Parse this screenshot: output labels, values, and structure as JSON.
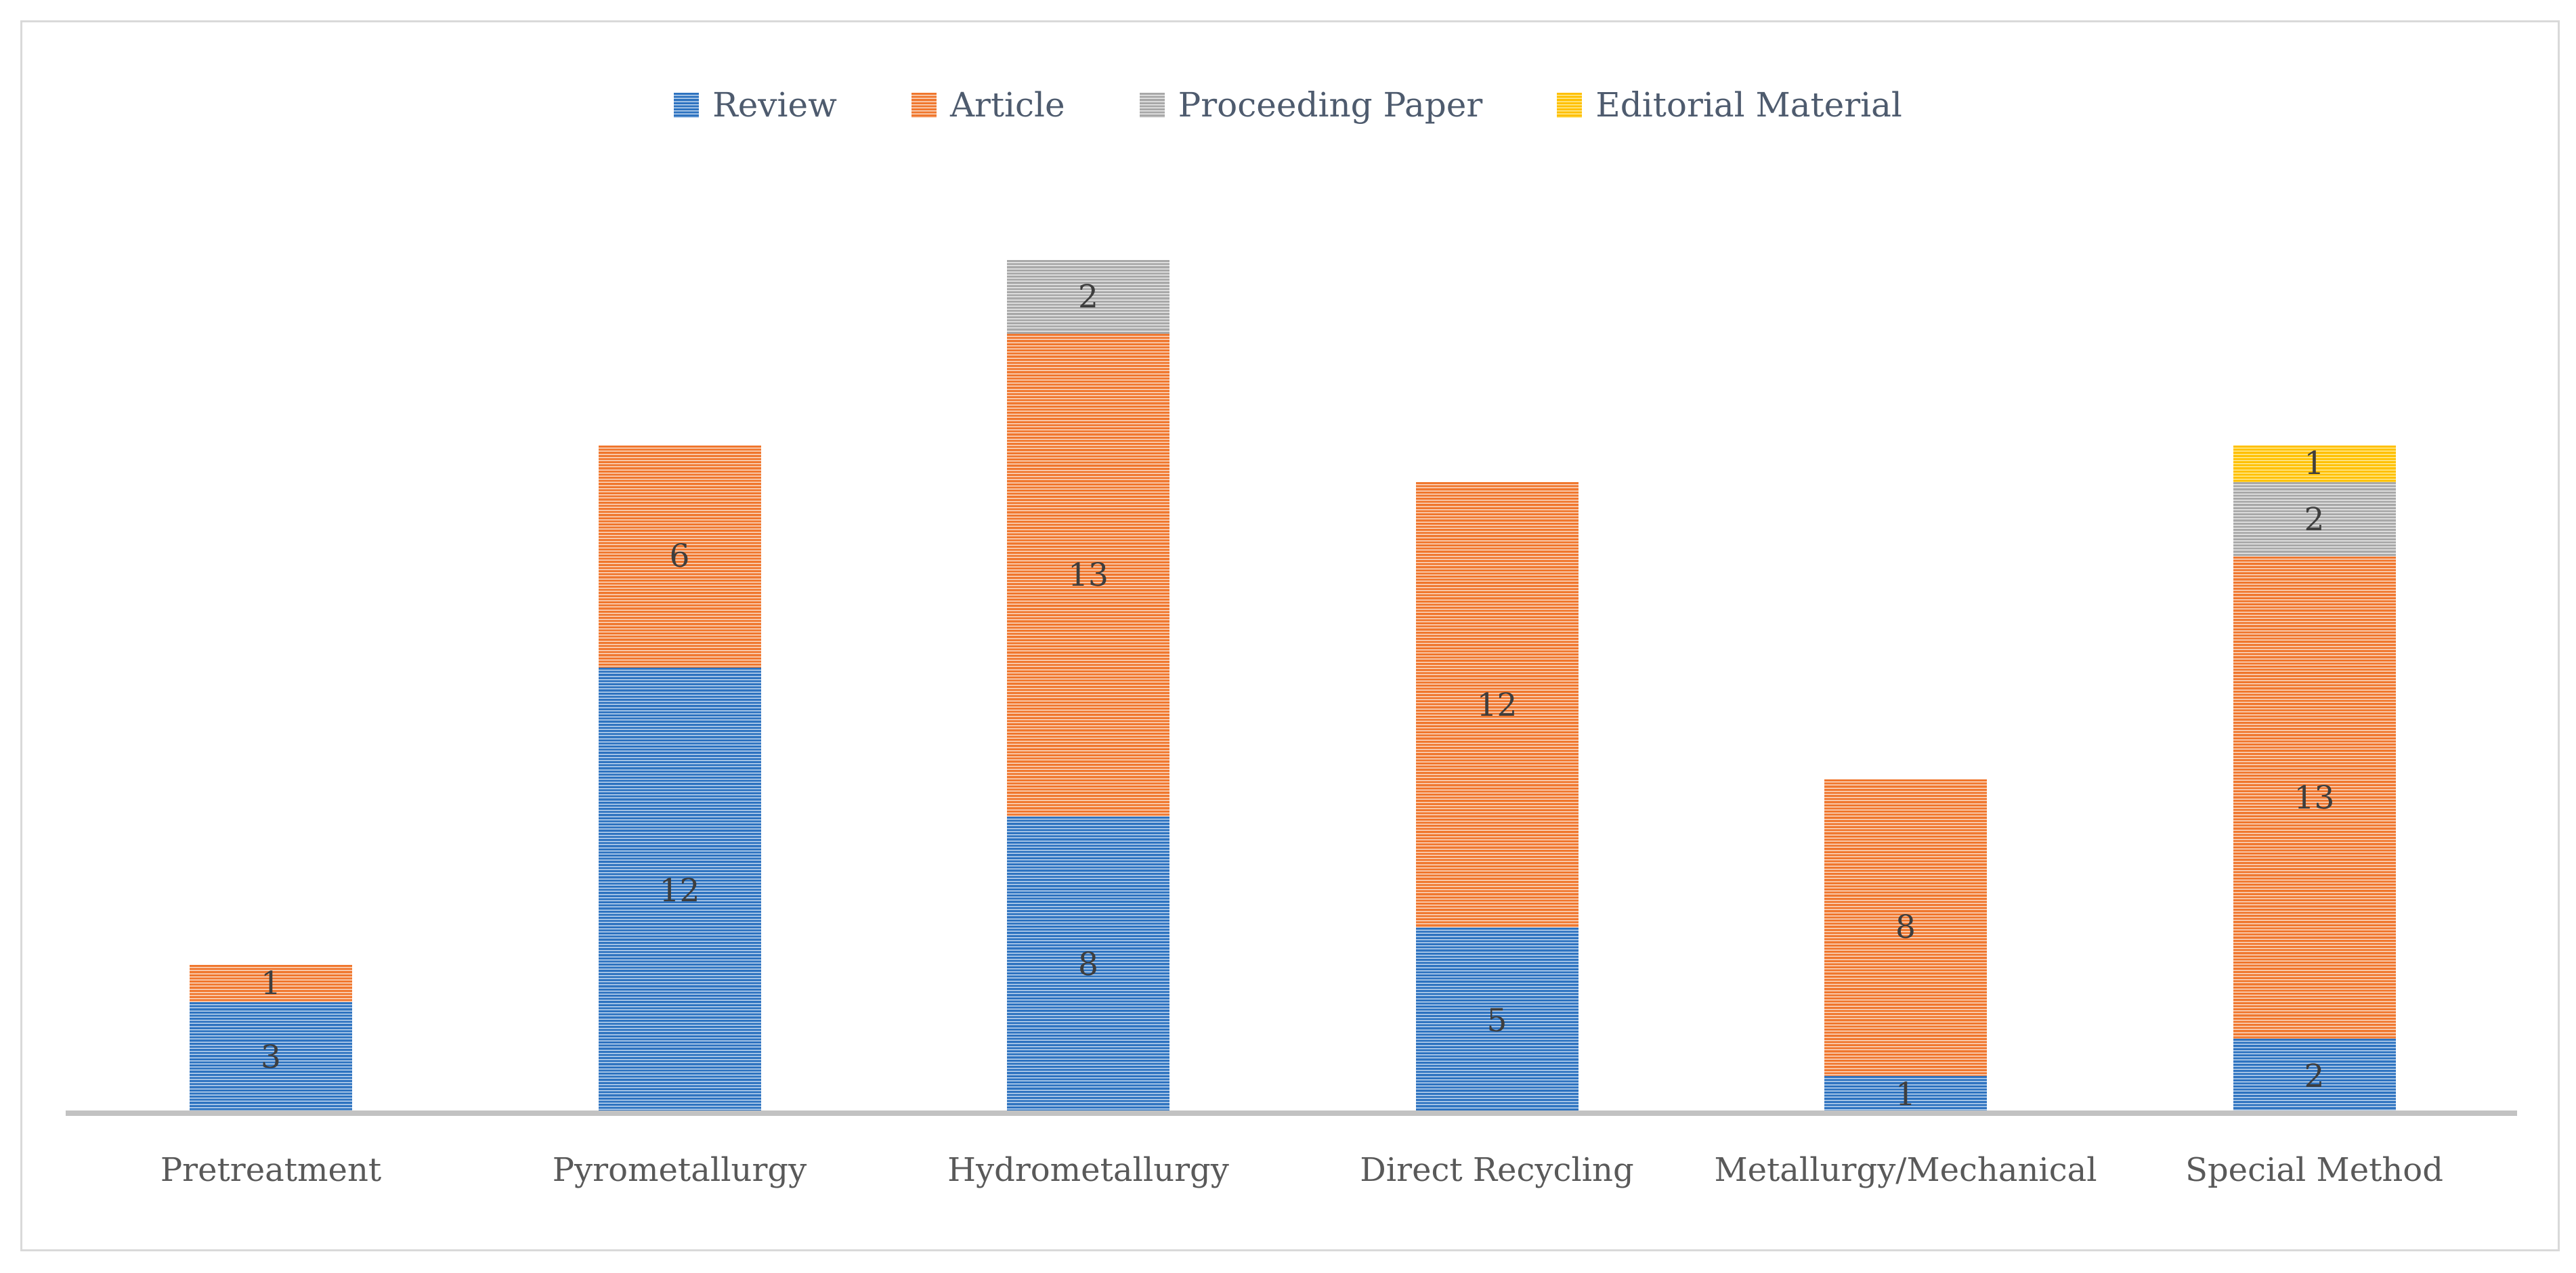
{
  "chart_data": {
    "type": "bar",
    "stacked": true,
    "orientation": "vertical",
    "title": "",
    "xlabel": "",
    "ylabel": "",
    "ylim": [
      0,
      23
    ],
    "grid": false,
    "legend_position": "top",
    "value_labels": true,
    "categories": [
      "Pretreatment",
      "Pyrometallurgy",
      "Hydrometallurgy",
      "Direct Recycling",
      "Metallurgy/Mechanical",
      "Special Method"
    ],
    "series": [
      {
        "name": "Review",
        "color": "#2E73C0",
        "color_light": "#C3D8F0",
        "values": [
          3,
          12,
          8,
          5,
          1,
          2
        ]
      },
      {
        "name": "Article",
        "color": "#F0772E",
        "color_light": "#FBDDC9",
        "values": [
          1,
          6,
          13,
          12,
          8,
          13
        ]
      },
      {
        "name": "Proceeding Paper",
        "color": "#A8A8A8",
        "color_light": "#EBEBEB",
        "values": [
          0,
          0,
          2,
          0,
          0,
          2
        ]
      },
      {
        "name": "Editorial Material",
        "color": "#FFC000",
        "color_light": "#FFEB9C",
        "values": [
          0,
          0,
          0,
          0,
          0,
          1
        ]
      }
    ],
    "totals": [
      4,
      18,
      23,
      17,
      9,
      18
    ]
  },
  "colors": {
    "background": "#FFFFFF",
    "frame_border": "#D9D9D9",
    "axis_line": "#C2C2C2",
    "value_label_text": "#3E3E3E",
    "category_label_text": "#595959",
    "legend_text": "#4E5B6E"
  }
}
